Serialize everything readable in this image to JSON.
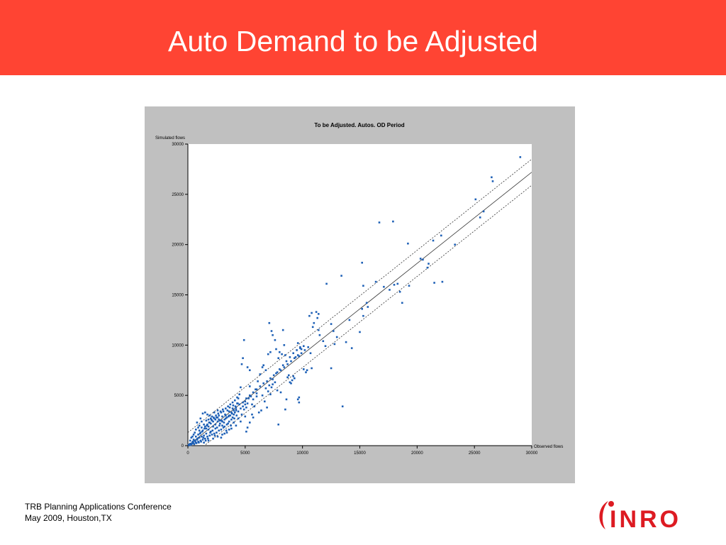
{
  "slide": {
    "title": "Auto Demand to be Adjusted",
    "footer_line1": "TRB Planning Applications Conference",
    "footer_line2": "May 2009, Houston,TX",
    "logo_text": "INRO",
    "header_color": "#ff4433",
    "logo_color": "#dd1b22"
  },
  "chart_data": {
    "type": "scatter",
    "title": "To be Adjusted. Autos. OD Period",
    "xlabel": "Observed flows",
    "ylabel": "Simulated flows",
    "xlim": [
      0,
      30000
    ],
    "ylim": [
      0,
      30000
    ],
    "x_ticks": [
      0,
      5000,
      10000,
      15000,
      20000,
      25000,
      30000
    ],
    "y_ticks": [
      0,
      5000,
      10000,
      15000,
      20000,
      25000,
      30000
    ],
    "grid": false,
    "point_color": "#1e60b6",
    "reference_lines": [
      {
        "style": "solid",
        "from": [
          0,
          0
        ],
        "to": [
          30000,
          27200
        ]
      },
      {
        "style": "dashed",
        "from": [
          0,
          1300
        ],
        "to": [
          30000,
          28500
        ]
      },
      {
        "style": "dashed",
        "from": [
          0,
          -1300
        ],
        "to": [
          30000,
          25900
        ]
      }
    ],
    "points": [
      [
        29000,
        28700
      ],
      [
        26500,
        26700
      ],
      [
        26600,
        26300
      ],
      [
        25100,
        24500
      ],
      [
        25800,
        23300
      ],
      [
        25500,
        22700
      ],
      [
        16700,
        22200
      ],
      [
        17900,
        22300
      ],
      [
        19200,
        20100
      ],
      [
        21400,
        20400
      ],
      [
        22100,
        20900
      ],
      [
        23300,
        20000
      ],
      [
        20500,
        18500
      ],
      [
        20300,
        18600
      ],
      [
        21000,
        18100
      ],
      [
        20900,
        17700
      ],
      [
        21500,
        16200
      ],
      [
        22200,
        16300
      ],
      [
        18000,
        16000
      ],
      [
        18300,
        16100
      ],
      [
        18500,
        15300
      ],
      [
        19300,
        15900
      ],
      [
        17100,
        15800
      ],
      [
        17600,
        15500
      ],
      [
        18700,
        14200
      ],
      [
        15200,
        18200
      ],
      [
        13400,
        16900
      ],
      [
        12100,
        16100
      ],
      [
        15300,
        15900
      ],
      [
        16400,
        16300
      ],
      [
        15600,
        14200
      ],
      [
        15700,
        13800
      ],
      [
        15300,
        12900
      ],
      [
        15200,
        13600
      ],
      [
        15000,
        11300
      ],
      [
        13800,
        10300
      ],
      [
        14300,
        9700
      ],
      [
        14100,
        12500
      ],
      [
        13500,
        3900
      ],
      [
        13000,
        10800
      ],
      [
        12800,
        10100
      ],
      [
        12700,
        11400
      ],
      [
        12500,
        12100
      ],
      [
        12000,
        9900
      ],
      [
        11800,
        10400
      ],
      [
        11500,
        11000
      ],
      [
        11400,
        13100
      ],
      [
        11300,
        12700
      ],
      [
        11200,
        13300
      ],
      [
        11000,
        12200
      ],
      [
        10800,
        13200
      ],
      [
        10600,
        12900
      ],
      [
        11400,
        11500
      ],
      [
        10900,
        11800
      ],
      [
        10700,
        9200
      ],
      [
        10800,
        7700
      ],
      [
        12500,
        7700
      ],
      [
        10400,
        7500
      ],
      [
        10300,
        7300
      ],
      [
        10100,
        7600
      ],
      [
        9900,
        9600
      ],
      [
        9800,
        9800
      ],
      [
        9700,
        8900
      ],
      [
        9600,
        10200
      ],
      [
        9400,
        8800
      ],
      [
        9300,
        6700
      ],
      [
        9200,
        6900
      ],
      [
        9100,
        6500
      ],
      [
        9000,
        6200
      ],
      [
        8900,
        6300
      ],
      [
        8800,
        7000
      ],
      [
        8700,
        6800
      ],
      [
        9700,
        4800
      ],
      [
        9600,
        4600
      ],
      [
        9700,
        4300
      ],
      [
        8500,
        9000
      ],
      [
        8400,
        10000
      ],
      [
        8200,
        9100
      ],
      [
        8300,
        11500
      ],
      [
        8000,
        9300
      ],
      [
        7600,
        10500
      ],
      [
        7400,
        11000
      ],
      [
        7300,
        11400
      ],
      [
        7100,
        12200
      ],
      [
        7200,
        9300
      ],
      [
        7000,
        9100
      ],
      [
        7700,
        9600
      ],
      [
        7900,
        8700
      ],
      [
        8600,
        4600
      ],
      [
        8500,
        3600
      ],
      [
        7900,
        2100
      ],
      [
        7600,
        6300
      ],
      [
        7400,
        6100
      ],
      [
        7300,
        5800
      ],
      [
        7000,
        5400
      ],
      [
        6800,
        7500
      ],
      [
        6600,
        8000
      ],
      [
        6500,
        7800
      ],
      [
        6300,
        7100
      ],
      [
        6100,
        6400
      ],
      [
        6000,
        5200
      ],
      [
        5900,
        5600
      ],
      [
        6000,
        4900
      ],
      [
        5700,
        4600
      ],
      [
        5500,
        4900
      ],
      [
        5400,
        5900
      ],
      [
        5300,
        4700
      ],
      [
        5200,
        4200
      ],
      [
        5100,
        3800
      ],
      [
        5000,
        4400
      ],
      [
        4900,
        3600
      ],
      [
        4800,
        8700
      ],
      [
        4700,
        8100
      ],
      [
        4900,
        10500
      ],
      [
        5200,
        7800
      ],
      [
        5400,
        7500
      ],
      [
        4600,
        5800
      ],
      [
        4500,
        5100
      ],
      [
        4400,
        4700
      ],
      [
        4300,
        4200
      ],
      [
        4200,
        3500
      ],
      [
        4100,
        3300
      ],
      [
        5600,
        4100
      ],
      [
        5800,
        3900
      ],
      [
        5600,
        3100
      ],
      [
        5700,
        2800
      ],
      [
        5400,
        2300
      ],
      [
        5200,
        1800
      ],
      [
        5100,
        1400
      ],
      [
        6200,
        3300
      ],
      [
        6400,
        3500
      ],
      [
        6700,
        4400
      ],
      [
        6900,
        3800
      ],
      [
        7200,
        5100
      ],
      [
        7800,
        5500
      ],
      [
        8100,
        5300
      ],
      [
        4000,
        3100
      ],
      [
        3900,
        2800
      ],
      [
        3800,
        2600
      ],
      [
        3700,
        3000
      ],
      [
        3600,
        2400
      ],
      [
        3500,
        2200
      ],
      [
        3400,
        2100
      ],
      [
        3300,
        2700
      ],
      [
        3200,
        1900
      ],
      [
        3100,
        1800
      ],
      [
        3000,
        2000
      ],
      [
        2900,
        1600
      ],
      [
        2800,
        2200
      ],
      [
        2700,
        1500
      ],
      [
        2600,
        2400
      ],
      [
        2500,
        1300
      ],
      [
        2400,
        1700
      ],
      [
        2300,
        1200
      ],
      [
        2200,
        1900
      ],
      [
        2100,
        1100
      ],
      [
        2000,
        1400
      ],
      [
        1900,
        1000
      ],
      [
        1800,
        1600
      ],
      [
        1700,
        900
      ],
      [
        1600,
        1200
      ],
      [
        1500,
        700
      ],
      [
        1400,
        1000
      ],
      [
        1300,
        600
      ],
      [
        1200,
        900
      ],
      [
        1100,
        500
      ],
      [
        1000,
        800
      ],
      [
        900,
        400
      ],
      [
        800,
        600
      ],
      [
        700,
        300
      ],
      [
        600,
        500
      ],
      [
        500,
        250
      ],
      [
        400,
        350
      ],
      [
        300,
        150
      ],
      [
        200,
        200
      ],
      [
        100,
        80
      ],
      [
        50,
        30
      ],
      [
        150,
        120
      ],
      [
        250,
        60
      ],
      [
        350,
        200
      ],
      [
        450,
        400
      ],
      [
        550,
        150
      ],
      [
        650,
        450
      ],
      [
        750,
        250
      ],
      [
        850,
        700
      ],
      [
        950,
        300
      ],
      [
        1050,
        1200
      ],
      [
        1150,
        400
      ],
      [
        1250,
        1400
      ],
      [
        1350,
        800
      ],
      [
        1450,
        1700
      ],
      [
        1550,
        500
      ],
      [
        1650,
        2000
      ],
      [
        1750,
        700
      ],
      [
        1850,
        2300
      ],
      [
        1950,
        1300
      ],
      [
        2050,
        2600
      ],
      [
        2150,
        1500
      ],
      [
        2250,
        2800
      ],
      [
        2350,
        1000
      ],
      [
        2450,
        3000
      ],
      [
        2550,
        1800
      ],
      [
        2650,
        3200
      ],
      [
        2750,
        2000
      ],
      [
        2850,
        3400
      ],
      [
        2950,
        2500
      ],
      [
        3050,
        3600
      ],
      [
        3150,
        2300
      ],
      [
        3250,
        3100
      ],
      [
        3350,
        1500
      ],
      [
        3450,
        3500
      ],
      [
        3550,
        2900
      ],
      [
        3650,
        3800
      ],
      [
        3750,
        2000
      ],
      [
        3850,
        3200
      ],
      [
        3950,
        4000
      ],
      [
        4050,
        2700
      ],
      [
        4150,
        3900
      ],
      [
        4250,
        3000
      ],
      [
        4350,
        4200
      ],
      [
        1300,
        3200
      ],
      [
        1500,
        3300
      ],
      [
        1700,
        3100
      ],
      [
        1100,
        2700
      ],
      [
        1900,
        3000
      ],
      [
        2000,
        2700
      ],
      [
        2300,
        3300
      ],
      [
        2600,
        3500
      ],
      [
        600,
        1300
      ],
      [
        700,
        1600
      ],
      [
        900,
        1800
      ],
      [
        1000,
        2000
      ],
      [
        800,
        2300
      ],
      [
        1200,
        2400
      ],
      [
        400,
        900
      ],
      [
        500,
        1100
      ],
      [
        300,
        800
      ],
      [
        200,
        500
      ],
      [
        1600,
        2500
      ],
      [
        1800,
        2600
      ],
      [
        2100,
        2900
      ],
      [
        2400,
        2100
      ],
      [
        2700,
        2600
      ],
      [
        3000,
        2900
      ],
      [
        3300,
        3000
      ],
      [
        3600,
        3400
      ],
      [
        3900,
        3700
      ],
      [
        4200,
        3800
      ],
      [
        4500,
        4100
      ],
      [
        4800,
        4300
      ],
      [
        5100,
        4700
      ],
      [
        5400,
        5000
      ],
      [
        5700,
        5300
      ],
      [
        6000,
        5600
      ],
      [
        6300,
        5900
      ],
      [
        6600,
        6200
      ],
      [
        6900,
        6400
      ],
      [
        7200,
        6700
      ],
      [
        7500,
        7000
      ],
      [
        7800,
        7300
      ],
      [
        8100,
        7500
      ],
      [
        8400,
        7800
      ],
      [
        8700,
        8100
      ],
      [
        9000,
        8400
      ],
      [
        9300,
        8700
      ],
      [
        9600,
        9000
      ],
      [
        9900,
        9200
      ],
      [
        10200,
        9500
      ],
      [
        10500,
        9800
      ],
      [
        2200,
        700
      ],
      [
        2600,
        900
      ],
      [
        3000,
        1100
      ],
      [
        3400,
        1300
      ],
      [
        3800,
        1700
      ],
      [
        4200,
        2000
      ],
      [
        4600,
        2400
      ],
      [
        5000,
        2900
      ],
      [
        1400,
        300
      ],
      [
        1800,
        500
      ],
      [
        2900,
        800
      ],
      [
        3200,
        1200
      ],
      [
        3600,
        1600
      ],
      [
        4000,
        2300
      ],
      [
        4400,
        2700
      ],
      [
        4700,
        3100
      ],
      [
        500,
        600
      ],
      [
        700,
        900
      ],
      [
        900,
        1100
      ],
      [
        1100,
        1300
      ],
      [
        1300,
        1500
      ],
      [
        1500,
        1900
      ],
      [
        1700,
        2100
      ],
      [
        1900,
        2300
      ],
      [
        2100,
        2500
      ],
      [
        2300,
        2700
      ],
      [
        2500,
        2800
      ],
      [
        2700,
        3000
      ],
      [
        2900,
        3300
      ],
      [
        3100,
        3400
      ],
      [
        3300,
        3700
      ],
      [
        3500,
        3900
      ],
      [
        3700,
        4100
      ],
      [
        3900,
        4300
      ],
      [
        4100,
        4500
      ],
      [
        4300,
        4800
      ],
      [
        6500,
        5000
      ],
      [
        6800,
        5700
      ],
      [
        7100,
        6000
      ],
      [
        7400,
        6600
      ],
      [
        7700,
        7200
      ],
      [
        8000,
        7600
      ],
      [
        8300,
        8000
      ],
      [
        8600,
        8400
      ],
      [
        8900,
        8800
      ],
      [
        9200,
        9200
      ],
      [
        9500,
        9500
      ],
      [
        9800,
        9700
      ],
      [
        10100,
        9900
      ],
      [
        1000,
        1500
      ],
      [
        1200,
        1800
      ],
      [
        1400,
        2100
      ],
      [
        1600,
        1700
      ],
      [
        1800,
        1900
      ],
      [
        2000,
        2200
      ],
      [
        2200,
        2400
      ],
      [
        2400,
        2600
      ],
      [
        2600,
        2800
      ],
      [
        2800,
        2500
      ],
      [
        3000,
        2400
      ],
      [
        3200,
        2600
      ],
      [
        3400,
        2800
      ],
      [
        3600,
        3000
      ],
      [
        3800,
        3300
      ],
      [
        4000,
        3500
      ],
      [
        4200,
        3600
      ],
      [
        4400,
        3400
      ],
      [
        4600,
        3700
      ],
      [
        4800,
        3900
      ],
      [
        5000,
        4100
      ]
    ]
  }
}
